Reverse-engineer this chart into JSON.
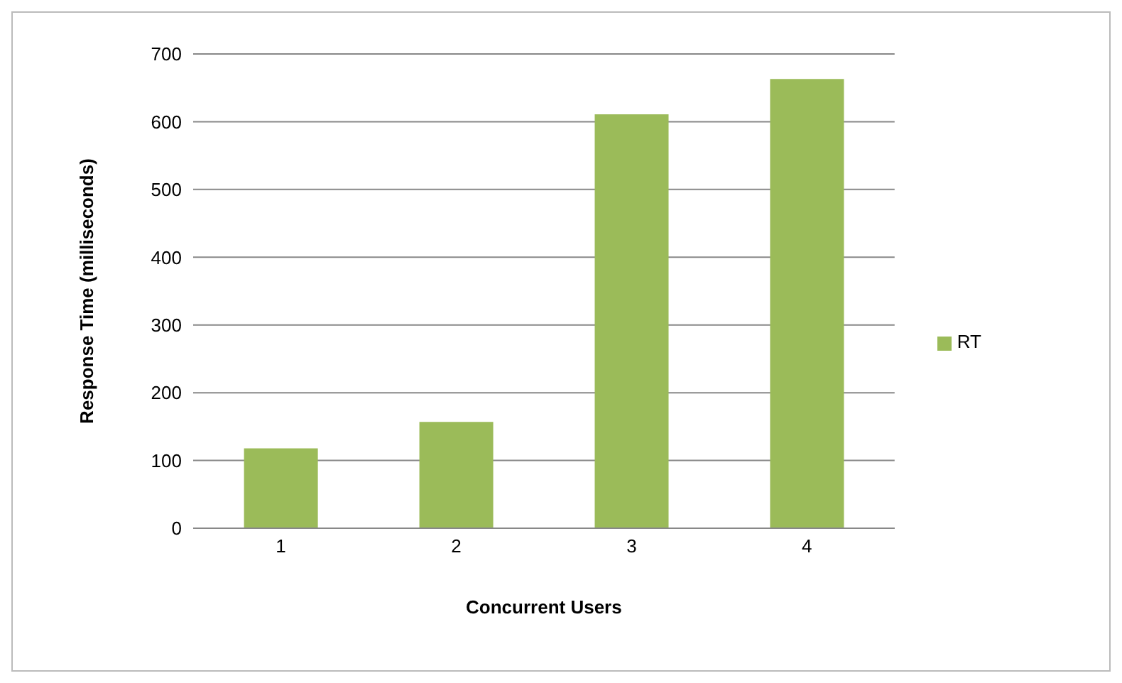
{
  "chart_data": {
    "type": "bar",
    "xlabel": "Concurrent Users",
    "ylabel": "Response Time  (milliseconds)",
    "categories": [
      "1",
      "2",
      "3",
      "4"
    ],
    "series": [
      {
        "name": "RT",
        "color": "#9bbb59",
        "values": [
          118,
          157,
          611,
          663
        ]
      }
    ],
    "ylim": [
      0,
      700
    ],
    "yticks": [
      0,
      100,
      200,
      300,
      400,
      500,
      600,
      700
    ],
    "grid": "y",
    "legend": "right"
  }
}
